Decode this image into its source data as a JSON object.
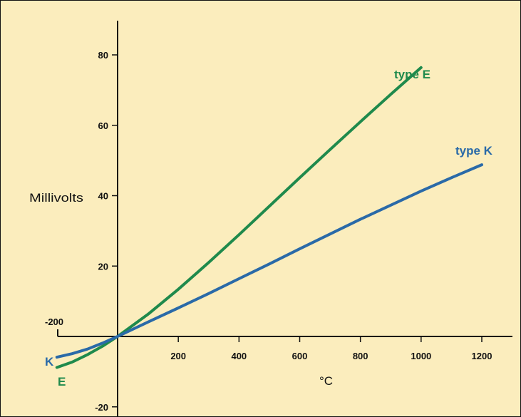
{
  "chart_data": {
    "type": "line",
    "title": "",
    "xlabel": "°C",
    "ylabel": "Millivolts",
    "xlim": [
      -200,
      1200
    ],
    "ylim": [
      -20,
      90
    ],
    "x_ticks": [
      200,
      400,
      600,
      800,
      1000,
      1200
    ],
    "y_ticks": [
      -20,
      20,
      40,
      60,
      80
    ],
    "x_min_label": "-200",
    "background_color": "#fbedbd",
    "grid": false,
    "series": [
      {
        "name": "type E",
        "end_label": "type E",
        "start_label": "E",
        "color": "#1f8a4c",
        "x": [
          -200,
          -150,
          -100,
          -50,
          0,
          100,
          200,
          300,
          400,
          500,
          600,
          700,
          800,
          900,
          1000
        ],
        "y": [
          -8.8,
          -7.3,
          -5.2,
          -2.8,
          0,
          6.3,
          13.4,
          21,
          28.9,
          37,
          45.1,
          53.1,
          61,
          68.8,
          76.4
        ]
      },
      {
        "name": "type K",
        "end_label": "type K",
        "start_label": "K",
        "color": "#2a6aa8",
        "x": [
          -200,
          -150,
          -100,
          -50,
          0,
          100,
          200,
          300,
          400,
          500,
          600,
          700,
          800,
          900,
          1000,
          1100,
          1200
        ],
        "y": [
          -5.9,
          -4.9,
          -3.6,
          -1.9,
          0,
          4.1,
          8.1,
          12.2,
          16.4,
          20.6,
          24.9,
          29.1,
          33.3,
          37.3,
          41.3,
          45.1,
          48.8
        ]
      }
    ]
  }
}
